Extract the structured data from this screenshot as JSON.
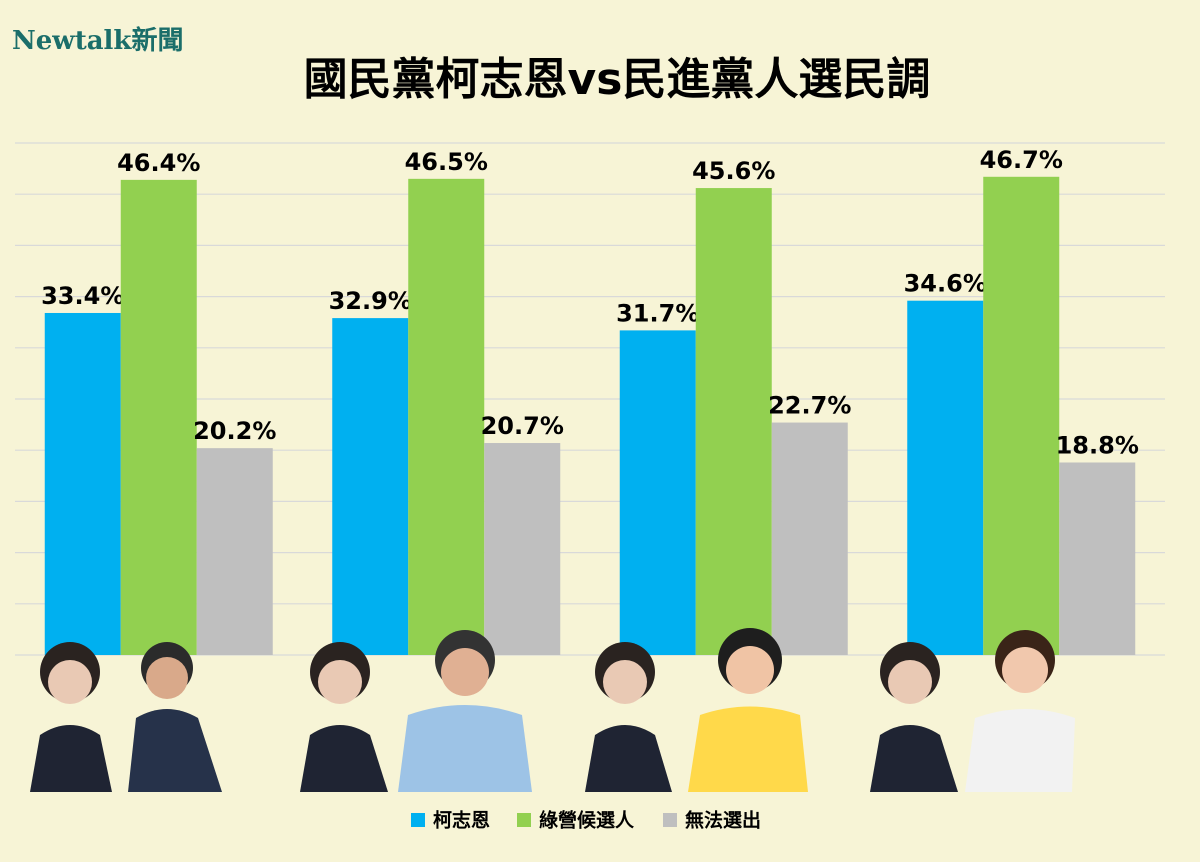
{
  "chart_data": {
    "type": "bar",
    "brand": "Newtalk新聞",
    "title": "國民黨柯志恩vs民進黨人選民調",
    "categories": [
      null,
      null,
      null,
      null
    ],
    "series": [
      {
        "name": "柯志恩",
        "color": "#00b0f0",
        "values": [
          33.4,
          32.9,
          31.7,
          34.6
        ],
        "value_labels": [
          "33.4%",
          "32.9%",
          "31.7%",
          "34.6%"
        ]
      },
      {
        "name": "綠營候選人",
        "color": "#92d050",
        "values": [
          46.4,
          46.5,
          45.6,
          46.7
        ],
        "value_labels": [
          "46.4%",
          "46.5%",
          "45.6%",
          "46.7%"
        ]
      },
      {
        "name": "無法選出",
        "color": "#bfbfbf",
        "values": [
          20.2,
          20.7,
          22.7,
          18.8
        ],
        "value_labels": [
          "20.2%",
          "20.7%",
          "22.7%",
          "18.8%"
        ]
      }
    ],
    "ylim": [
      0,
      50
    ],
    "yticks": [
      0,
      5,
      10,
      15,
      20,
      25,
      30,
      35,
      40,
      45,
      50
    ],
    "grid": true,
    "legend": "bottom"
  }
}
